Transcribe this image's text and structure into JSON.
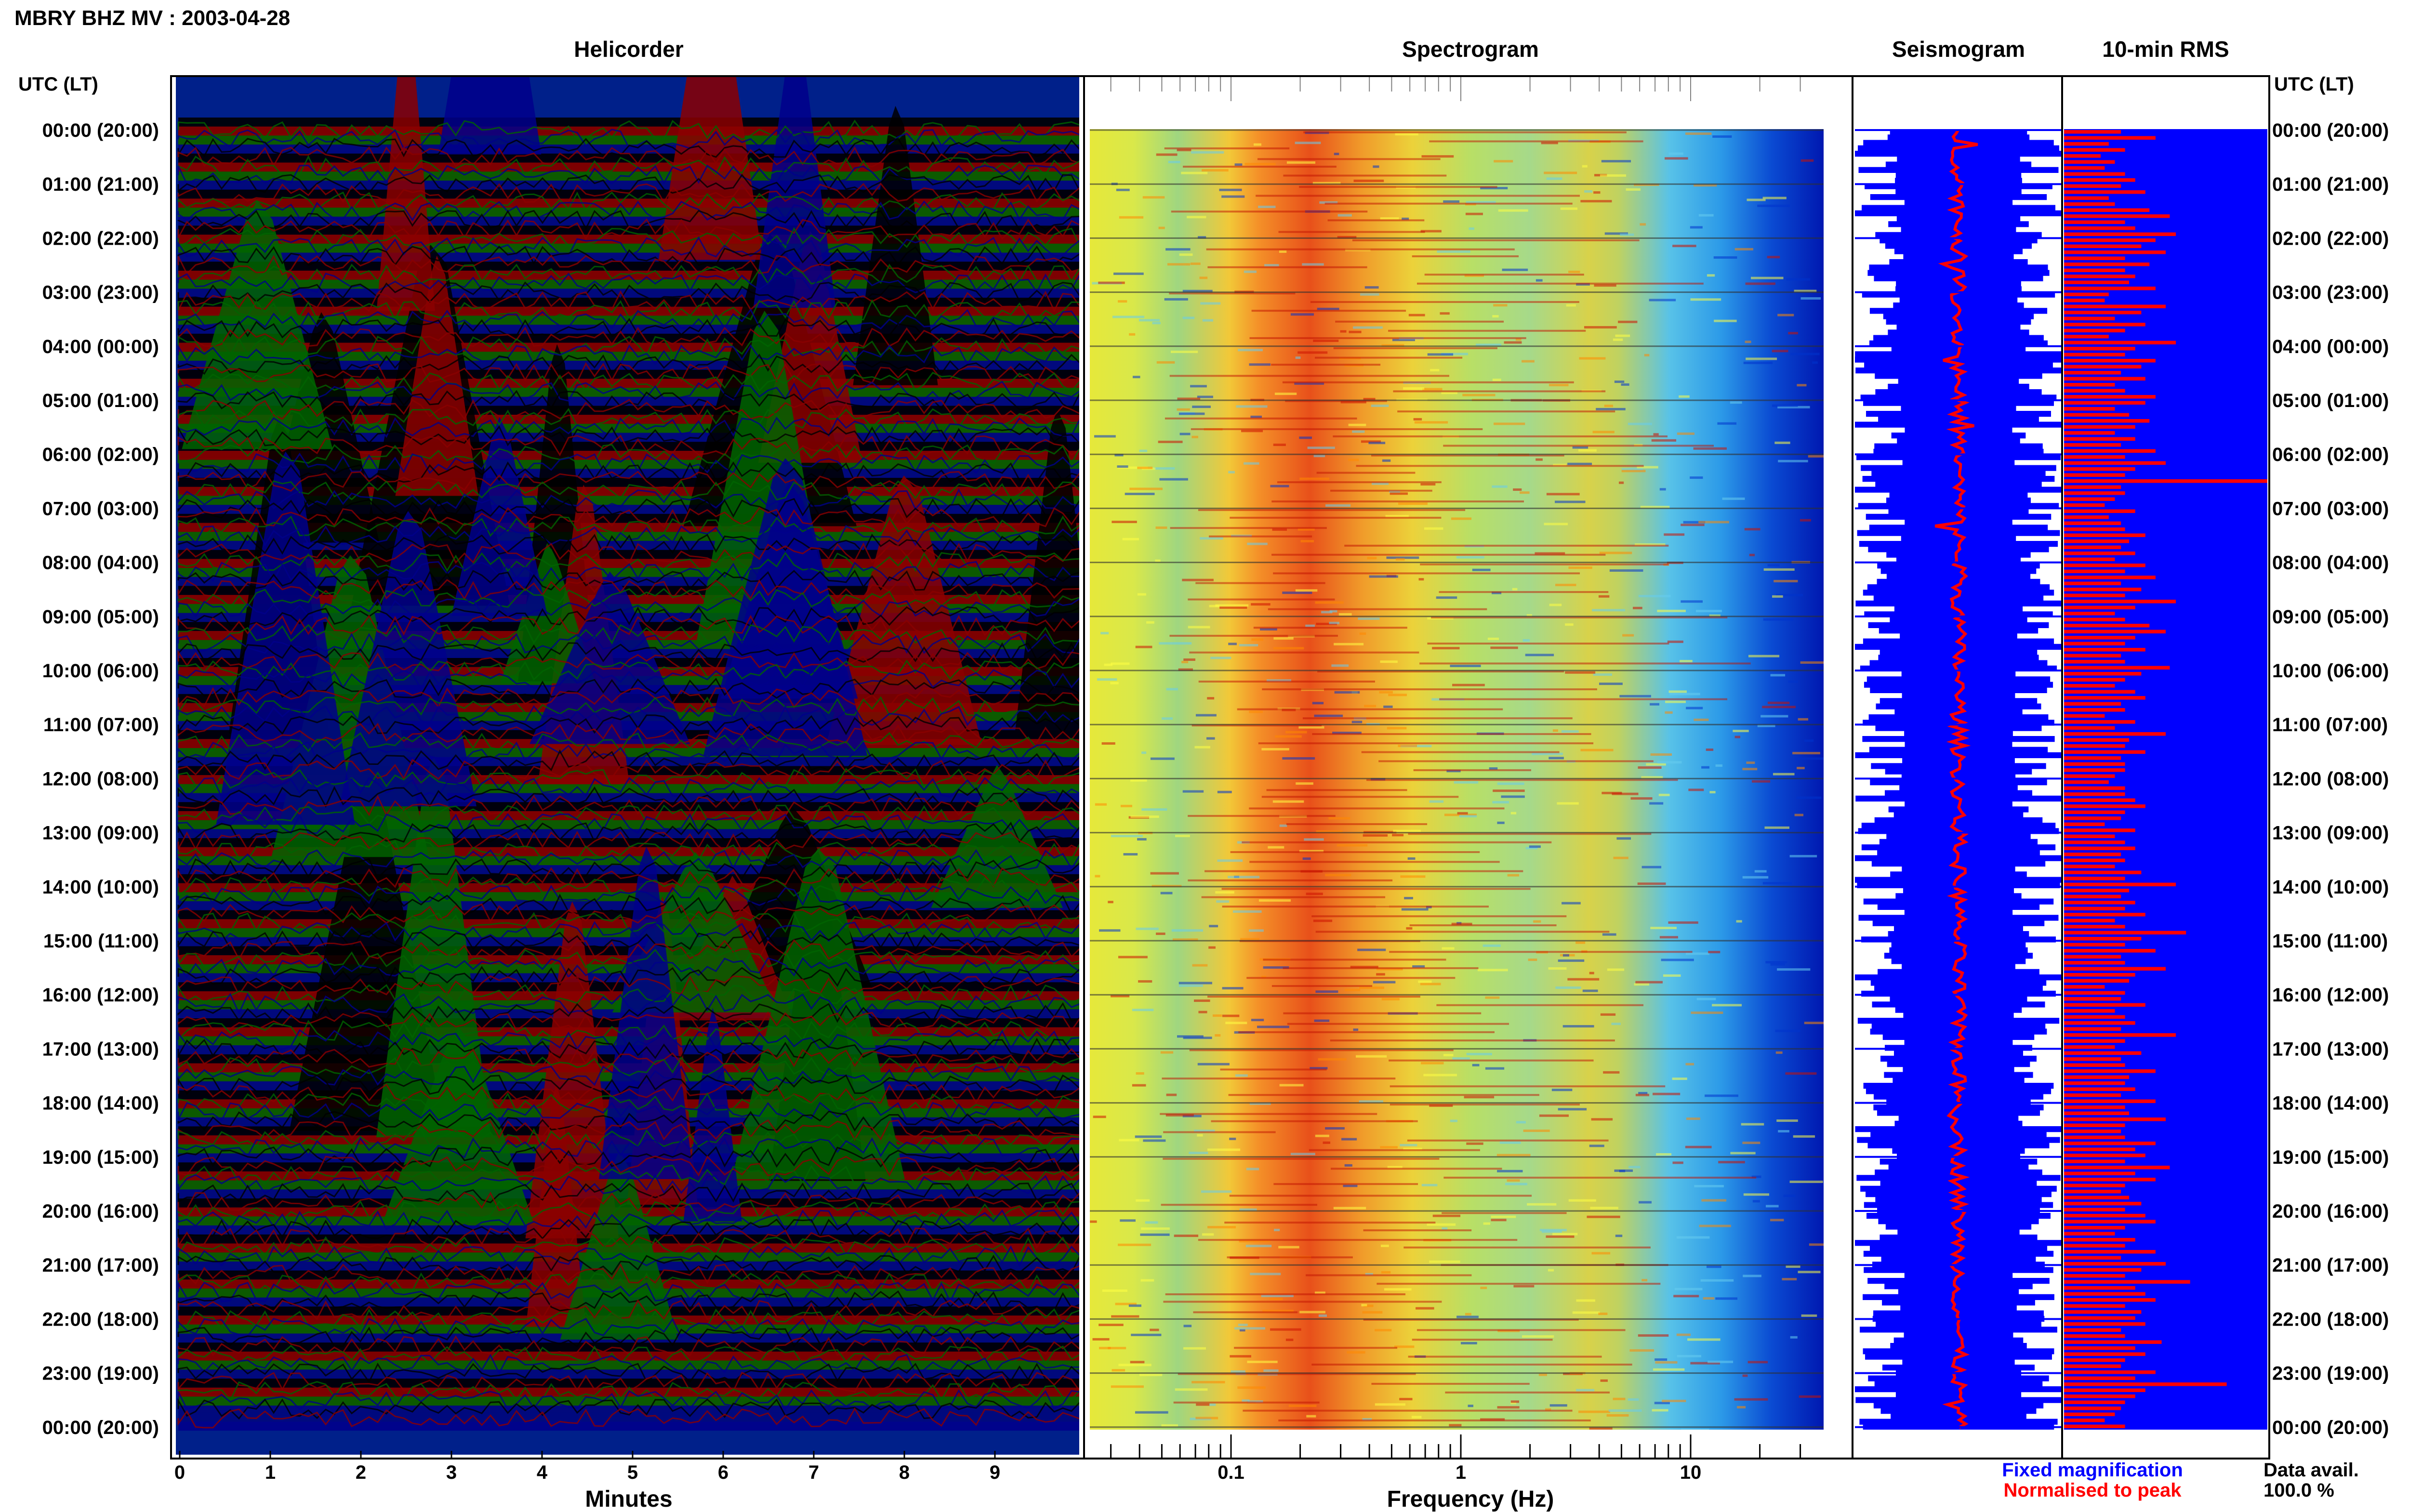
{
  "header": {
    "station_title": "MBRY BHZ MV : 2003-04-28",
    "utc_label_left": "UTC (LT)",
    "utc_label_right": "UTC (LT)"
  },
  "panels": {
    "helicorder_title": "Helicorder",
    "spectrogram_title": "Spectrogram",
    "seismogram_title": "Seismogram",
    "rms_title": "10-min RMS"
  },
  "legend": {
    "fixed": "Fixed magnification",
    "fixed_color": "#0000ff",
    "normalised": "Normalised to peak",
    "normalised_color": "#ff0000",
    "data_avail_label": "Data avail.",
    "data_avail_value": "100.0 %"
  },
  "chart_data": [
    {
      "type": "helicorder",
      "title": "Helicorder",
      "xlabel": "Minutes",
      "xlim": [
        0,
        10
      ],
      "x_ticks": [
        "0",
        "1",
        "2",
        "3",
        "4",
        "5",
        "6",
        "7",
        "8",
        "9"
      ],
      "trace_colors": [
        "#000000",
        "#8b0000",
        "#006400",
        "#00008b"
      ],
      "time_labels": [
        "00:00 (20:00)",
        "01:00 (21:00)",
        "02:00 (22:00)",
        "03:00 (23:00)",
        "04:00 (00:00)",
        "05:00 (01:00)",
        "06:00 (02:00)",
        "07:00 (03:00)",
        "08:00 (04:00)",
        "09:00 (05:00)",
        "10:00 (06:00)",
        "11:00 (07:00)",
        "12:00 (08:00)",
        "13:00 (09:00)",
        "14:00 (10:00)",
        "15:00 (11:00)",
        "16:00 (12:00)",
        "17:00 (13:00)",
        "18:00 (14:00)",
        "19:00 (15:00)",
        "20:00 (16:00)",
        "21:00 (17:00)",
        "22:00 (18:00)",
        "23:00 (19:00)",
        "00:00 (20:00)"
      ]
    },
    {
      "type": "heatmap",
      "title": "Spectrogram",
      "xlabel": "Frequency (Hz)",
      "x_scale": "log",
      "x_ticks": [
        "0.1",
        "1",
        "10"
      ],
      "colors": [
        "#ffff44",
        "#66ccee",
        "#ff8800",
        "#cc1100",
        "#0033cc"
      ]
    },
    {
      "type": "seismogram",
      "title": "Seismogram",
      "series": [
        {
          "name": "Fixed magnification",
          "color": "#0000ff"
        },
        {
          "name": "Normalised to peak",
          "color": "#ff0000"
        }
      ]
    },
    {
      "type": "bar",
      "title": "10-min RMS",
      "bar_color": "#ff0000",
      "background_color": "#0000ff",
      "values": [
        0.28,
        0.45,
        0.22,
        0.3,
        0.18,
        0.25,
        0.2,
        0.3,
        0.35,
        0.28,
        0.4,
        0.22,
        0.25,
        0.42,
        0.52,
        0.3,
        0.35,
        0.55,
        0.45,
        0.38,
        0.5,
        0.3,
        0.42,
        0.3,
        0.35,
        0.32,
        0.45,
        0.22,
        0.2,
        0.5,
        0.38,
        0.25,
        0.4,
        0.3,
        0.22,
        0.55,
        0.35,
        0.3,
        0.45,
        0.38,
        0.28,
        0.4,
        0.25,
        0.3,
        0.45,
        0.4,
        0.25,
        0.32,
        0.42,
        0.35,
        0.25,
        0.35,
        0.28,
        0.45,
        0.3,
        0.5,
        0.35,
        0.3,
        1.0,
        0.28,
        0.3,
        0.25,
        0.2,
        0.35,
        0.22,
        0.28,
        0.3,
        0.4,
        0.32,
        0.28,
        0.35,
        0.25,
        0.4,
        0.3,
        0.45,
        0.28,
        0.38,
        0.3,
        0.55,
        0.35,
        0.25,
        0.3,
        0.42,
        0.5,
        0.35,
        0.3,
        0.4,
        0.28,
        0.3,
        0.52,
        0.38,
        0.3,
        0.25,
        0.35,
        0.4,
        0.28,
        0.3,
        0.2,
        0.35,
        0.25,
        0.5,
        0.32,
        0.3,
        0.4,
        0.28,
        0.3,
        0.3,
        0.25,
        0.22,
        0.3,
        0.3,
        0.35,
        0.4,
        0.3,
        0.28,
        0.2,
        0.35,
        0.25,
        0.3,
        0.35,
        0.28,
        0.3,
        0.25,
        0.38,
        0.3,
        0.55,
        0.32,
        0.28,
        0.35,
        0.3,
        0.4,
        0.25,
        0.3,
        0.6,
        0.38,
        0.3,
        0.45,
        0.28,
        0.3,
        0.5,
        0.35,
        0.32,
        0.2,
        0.3,
        0.28,
        0.4,
        0.25,
        0.3,
        0.35,
        0.28,
        0.55,
        0.3,
        0.25,
        0.38,
        0.28,
        0.3,
        0.45,
        0.32,
        0.3,
        0.35,
        0.28,
        0.45,
        0.3,
        0.32,
        0.5,
        0.3,
        0.28,
        0.3,
        0.45,
        0.35,
        0.4,
        0.3,
        0.52,
        0.35,
        0.45,
        0.3,
        0.28,
        0.32,
        0.38,
        0.3,
        0.4,
        0.45,
        0.3,
        0.25,
        0.35,
        0.3,
        0.45,
        0.28,
        0.5,
        0.38,
        0.3,
        0.62,
        0.35,
        0.4,
        0.45,
        0.3,
        0.38,
        0.35,
        0.4,
        0.28,
        0.3,
        0.48,
        0.35,
        0.4,
        0.3,
        0.28,
        0.45,
        0.35,
        0.8,
        0.4,
        0.35,
        0.3,
        0.28,
        0.25,
        0.2,
        0.3
      ]
    }
  ]
}
